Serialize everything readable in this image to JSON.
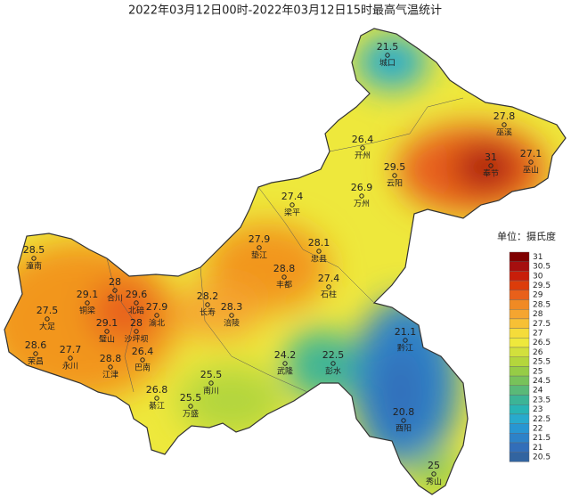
{
  "title": "2022年03月12日00时-2022年03月12日15时最高气温统计",
  "stations": [
    {
      "name": "城口",
      "value": 21.5
    },
    {
      "name": "巫溪",
      "value": 27.8
    },
    {
      "name": "巫山",
      "value": 27.1
    },
    {
      "name": "奉节",
      "value": 31
    },
    {
      "name": "开州",
      "value": 26.4
    },
    {
      "name": "云阳",
      "value": 29.5
    },
    {
      "name": "万州",
      "value": 26.9
    },
    {
      "name": "梁平",
      "value": 27.4
    },
    {
      "name": "垫江",
      "value": 27.9
    },
    {
      "name": "忠县",
      "value": 28.1
    },
    {
      "name": "石柱",
      "value": 27.4
    },
    {
      "name": "丰都",
      "value": 28.8
    },
    {
      "name": "潼南",
      "value": 28.5
    },
    {
      "name": "合川",
      "value": 28
    },
    {
      "name": "铜梁",
      "value": 29.1
    },
    {
      "name": "北碚",
      "value": 29.6
    },
    {
      "name": "大足",
      "value": 27.5
    },
    {
      "name": "长寿",
      "value": 28.2
    },
    {
      "name": "涪陵",
      "value": 28.3
    },
    {
      "name": "渝北",
      "value": 27.9
    },
    {
      "name": "璧山",
      "value": 29.1
    },
    {
      "name": "沙坪坝",
      "value": 28
    },
    {
      "name": "荣昌",
      "value": 28.6
    },
    {
      "name": "永川",
      "value": 27.7
    },
    {
      "name": "江津",
      "value": 28.8
    },
    {
      "name": "巴南",
      "value": 26.4
    },
    {
      "name": "南川",
      "value": 25.5
    },
    {
      "name": "武隆",
      "value": 24.2
    },
    {
      "name": "彭水",
      "value": 22.5
    },
    {
      "name": "黔江",
      "value": 21.1
    },
    {
      "name": "綦江",
      "value": 26.8
    },
    {
      "name": "万盛",
      "value": 25.5
    },
    {
      "name": "酉阳",
      "value": 20.8
    },
    {
      "name": "秀山",
      "value": 25
    }
  ],
  "legend": {
    "title": "单位：摄氏度",
    "items": [
      {
        "value": 31,
        "color": "#7f0000"
      },
      {
        "value": 30.5,
        "color": "#a50f0f"
      },
      {
        "value": 30,
        "color": "#c81e0a"
      },
      {
        "value": 29.5,
        "color": "#dc3c0a"
      },
      {
        "value": 29,
        "color": "#e8601a"
      },
      {
        "value": 28.5,
        "color": "#f08a24"
      },
      {
        "value": 28,
        "color": "#f5a530"
      },
      {
        "value": 27.5,
        "color": "#f7c035"
      },
      {
        "value": 27,
        "color": "#f5dc3a"
      },
      {
        "value": 26.5,
        "color": "#eee83c"
      },
      {
        "value": 26,
        "color": "#d2e03c"
      },
      {
        "value": 25.5,
        "color": "#b4d63c"
      },
      {
        "value": 25,
        "color": "#96cc46"
      },
      {
        "value": 24.5,
        "color": "#78c25a"
      },
      {
        "value": 24,
        "color": "#5ab978"
      },
      {
        "value": 23.5,
        "color": "#3cb496"
      },
      {
        "value": 23,
        "color": "#28b4b4"
      },
      {
        "value": 22.5,
        "color": "#28aacd"
      },
      {
        "value": 22,
        "color": "#2896d2"
      },
      {
        "value": 21.5,
        "color": "#2d82c8"
      },
      {
        "value": 21,
        "color": "#326eb9"
      },
      {
        "value": 20.5,
        "color": "#3264a0"
      }
    ]
  }
}
